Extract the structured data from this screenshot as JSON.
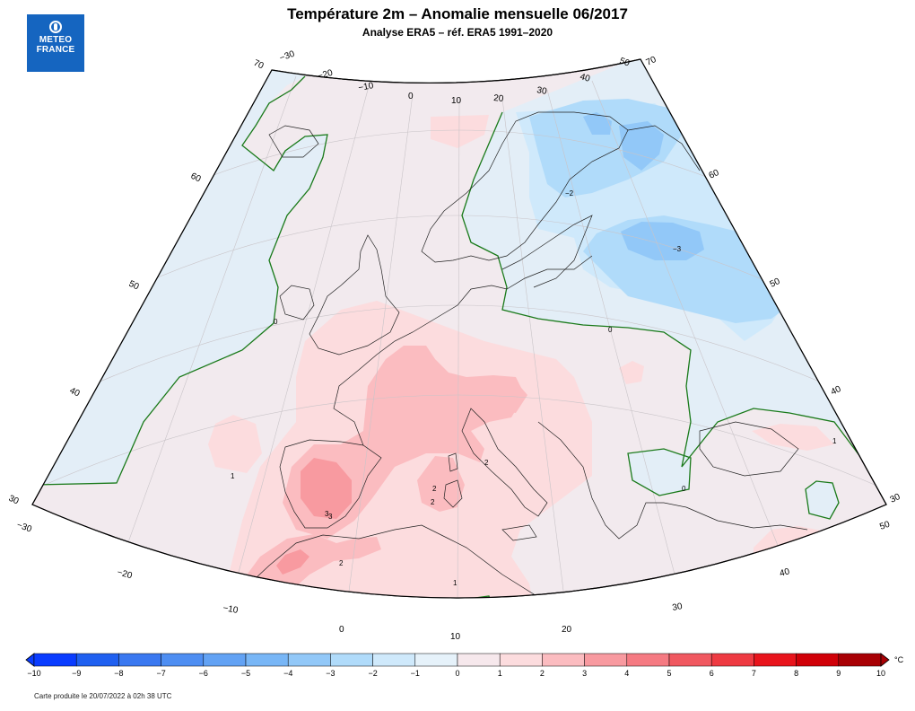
{
  "header": {
    "title": "Température 2m – Anomalie mensuelle 06/2017",
    "subtitle": "Analyse ERA5 – réf. ERA5 1991–2020"
  },
  "logo": {
    "line1": "METEO",
    "line2": "FRANCE",
    "icon": "meteo-france-logo-icon",
    "color": "#1565c0"
  },
  "map": {
    "projection": "conic",
    "background_color": "#f2eaee",
    "coast_color": "#222222",
    "zero_contour_color": "#1a7a1a",
    "lon_edge_labels_top": [
      "−30",
      "−20",
      "−10",
      "0",
      "10",
      "20",
      "30",
      "40",
      "50"
    ],
    "lat_labels_left": [
      "70",
      "60",
      "50",
      "40",
      "30"
    ],
    "lat_labels_right": [
      "70",
      "60",
      "50",
      "40",
      "30"
    ],
    "lon_labels_bottom_left": [
      "−30",
      "−20",
      "−10"
    ],
    "lon_labels_bottom": [
      "0",
      "10",
      "20",
      "30",
      "40",
      "50"
    ],
    "contour_labels": [
      "0",
      "1",
      "2",
      "3",
      "2",
      "0",
      "1",
      "1",
      "2",
      "2",
      "3",
      "−3",
      "−2",
      "0"
    ]
  },
  "legend": {
    "ticks": [
      "−10",
      "−9",
      "−8",
      "−7",
      "−6",
      "−5",
      "−4",
      "−3",
      "−2",
      "−1",
      "0",
      "1",
      "2",
      "3",
      "4",
      "5",
      "6",
      "7",
      "8",
      "9",
      "10"
    ],
    "colors": [
      "#0a3cff",
      "#2060f0",
      "#3a78f0",
      "#4e8ef2",
      "#62a2f4",
      "#78b6f6",
      "#92c8f8",
      "#b0dbfa",
      "#cfe9fb",
      "#e6f2fa",
      "#f6e8ec",
      "#fcdcde",
      "#fbbcc0",
      "#f89aa0",
      "#f57a82",
      "#f05860",
      "#ee3a42",
      "#e8141c",
      "#d00008",
      "#a80004"
    ],
    "unit": "°C"
  },
  "footer": {
    "text": "Carte produite le 20/07/2022 à 02h 38 UTC"
  }
}
